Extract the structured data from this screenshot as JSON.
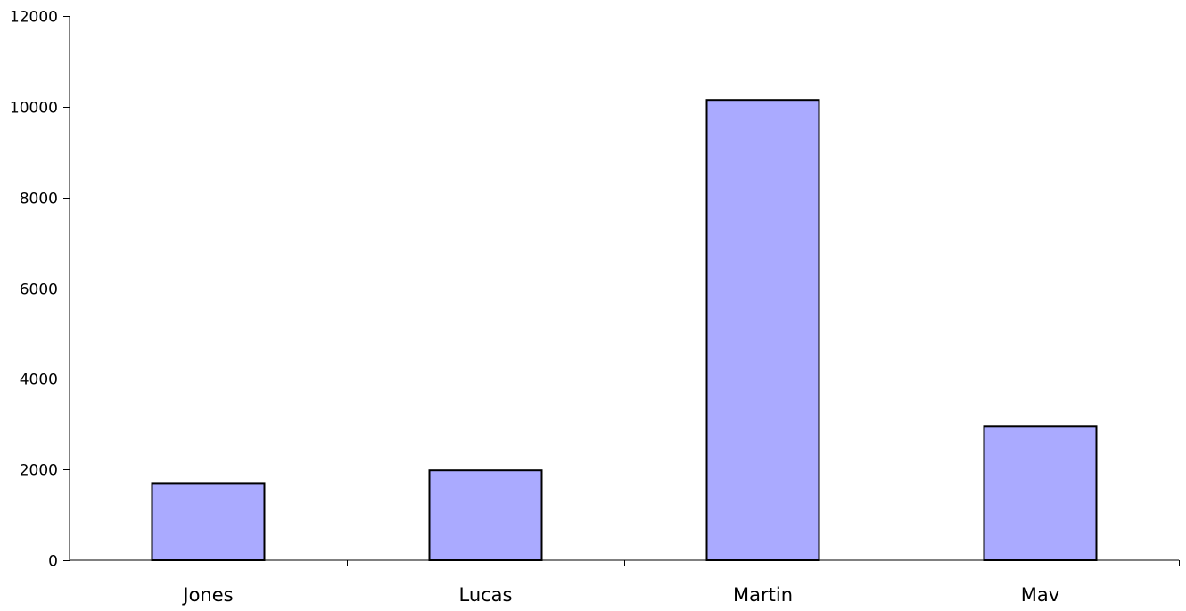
{
  "chart_data": {
    "type": "bar",
    "categories": [
      "Jones",
      "Lucas",
      "Martin",
      "Mav"
    ],
    "values": [
      1700,
      1980,
      10150,
      2960
    ],
    "ylim": [
      0,
      12000
    ],
    "yticks": [
      0,
      2000,
      4000,
      6000,
      8000,
      10000,
      12000
    ],
    "ytick_labels": [
      "0",
      "2000",
      "4000",
      "6000",
      "8000",
      "10000",
      "12000"
    ],
    "title": "",
    "xlabel": "",
    "ylabel": "",
    "grid": false,
    "legend": "none",
    "bar_color": "#aaaaff",
    "bar_edge_color": "#000000"
  }
}
